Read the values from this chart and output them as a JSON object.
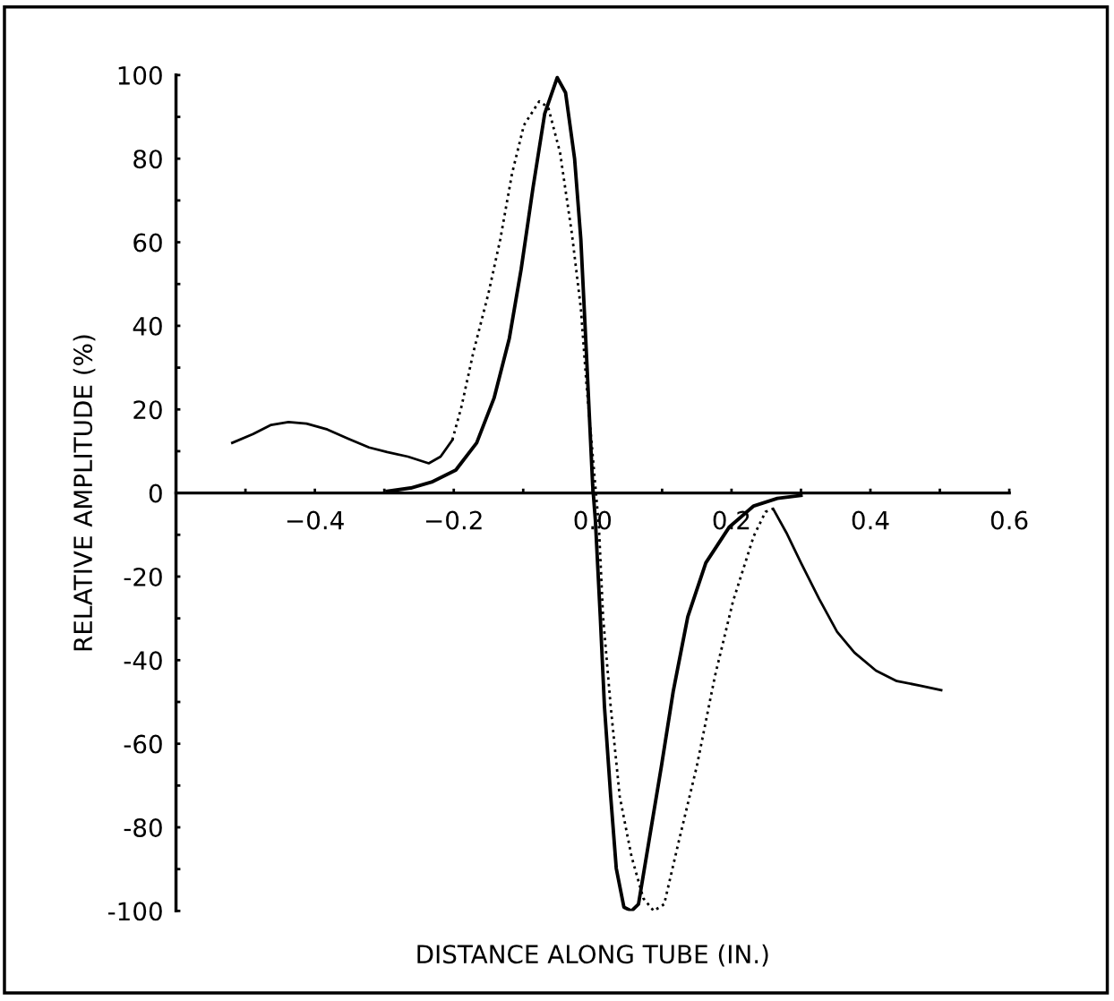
{
  "chart_data": {
    "type": "line",
    "xlabel": "DISTANCE ALONG TUBE (IN.)",
    "ylabel": "RELATIVE AMPLITUDE (%)",
    "xlim": [
      -0.6,
      0.6
    ],
    "ylim": [
      -100,
      100
    ],
    "xticks": [
      {
        "value": -0.5,
        "label": null
      },
      {
        "value": -0.4,
        "label": "−0.4"
      },
      {
        "value": -0.3,
        "label": null
      },
      {
        "value": -0.2,
        "label": "−0.2"
      },
      {
        "value": -0.1,
        "label": null
      },
      {
        "value": 0.0,
        "label": "0.0"
      },
      {
        "value": 0.1,
        "label": null
      },
      {
        "value": 0.2,
        "label": "0.2"
      },
      {
        "value": 0.3,
        "label": null
      },
      {
        "value": 0.4,
        "label": "0.4"
      },
      {
        "value": 0.5,
        "label": null
      },
      {
        "value": 0.6,
        "label": "0.6"
      }
    ],
    "yticks": [
      -100,
      {
        "value": -90,
        "label": null
      },
      -80,
      {
        "value": -70,
        "label": null
      },
      -60,
      {
        "value": -50,
        "label": null
      },
      -40,
      {
        "value": -30,
        "label": null
      },
      -20,
      {
        "value": -10,
        "label": null
      },
      0,
      {
        "value": 10,
        "label": null
      },
      20,
      {
        "value": 30,
        "label": null
      },
      40,
      {
        "value": 50,
        "label": null
      },
      60,
      {
        "value": 70,
        "label": null
      },
      80,
      {
        "value": 90,
        "label": null
      },
      100
    ],
    "grid": false,
    "legend": false,
    "marker": "none",
    "series": [
      {
        "color": "#000000",
        "line_style": "solid",
        "x": [
          -0.296,
          -0.262,
          -0.232,
          -0.197,
          -0.167,
          -0.142,
          -0.12,
          -0.103,
          -0.086,
          -0.069,
          -0.051,
          -0.039,
          -0.026,
          -0.017,
          -0.009,
          0.0,
          0.004,
          0.011,
          0.017,
          0.026,
          0.034,
          0.045,
          0.056,
          0.066,
          0.081,
          0.099,
          0.116,
          0.137,
          0.163,
          0.197,
          0.232,
          0.266,
          0.3
        ],
        "values": [
          0.4,
          1.2,
          2.6,
          5.5,
          12,
          22.7,
          37,
          53.5,
          72.9,
          90.8,
          99.4,
          95.8,
          80,
          60.7,
          33.5,
          1.9,
          -6.7,
          -29.6,
          -51.1,
          -72.6,
          -89.8,
          -99.1,
          -100,
          -98.4,
          -83.4,
          -65.4,
          -47.5,
          -29.6,
          -16.7,
          -8.1,
          -3.1,
          -1.3,
          -0.6
        ]
      },
      {
        "color": "#000000",
        "line_style": "solid",
        "x": [
          -0.519,
          -0.489,
          -0.463,
          -0.438,
          -0.412,
          -0.382,
          -0.352,
          -0.322,
          -0.296,
          -0.266,
          -0.236,
          -0.219,
          -0.202
        ],
        "values": [
          12,
          14.1,
          16.3,
          17,
          16.6,
          15.2,
          13.0,
          10.9,
          9.8,
          8.7,
          7.1,
          8.7,
          12.7
        ]
      },
      {
        "color": "#000000",
        "line_style": "dotted",
        "x": [
          -0.202,
          -0.189,
          -0.172,
          -0.15,
          -0.133,
          -0.116,
          -0.099,
          -0.077,
          -0.064,
          -0.047,
          -0.03,
          -0.017,
          -0.009,
          0.009,
          0.015,
          0.026,
          0.039,
          0.056,
          0.073,
          0.088,
          0.103,
          0.124,
          0.15,
          0.176,
          0.202,
          0.232,
          0.249,
          0.26
        ],
        "values": [
          12.7,
          20.6,
          33.5,
          47.8,
          60.7,
          76.5,
          88,
          93.7,
          92.3,
          81.5,
          62.2,
          44.2,
          26.3,
          -8.1,
          -29.6,
          -51.1,
          -72.6,
          -87,
          -97,
          -100,
          -98.4,
          -83.4,
          -65.4,
          -43.9,
          -26,
          -10.3,
          -4.5,
          -3.8
        ]
      },
      {
        "color": "#000000",
        "line_style": "solid",
        "x": [
          0.26,
          0.279,
          0.3,
          0.326,
          0.352,
          0.377,
          0.408,
          0.438,
          0.472,
          0.502
        ],
        "values": [
          -3.8,
          -9.5,
          -16.7,
          -25.3,
          -33.2,
          -38.2,
          -42.5,
          -45,
          -46.1,
          -47.2
        ]
      }
    ]
  }
}
